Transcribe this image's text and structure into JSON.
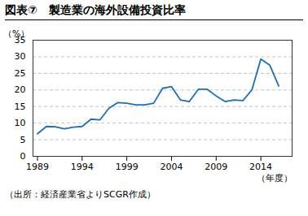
{
  "chart_data": {
    "type": "line",
    "title": "図表⑦　製造業の海外設備投資比率",
    "ylabel": "（%）",
    "xlabel": "（年度）",
    "source": "（出所：経済産業省よりSCGR作成）",
    "x": [
      1989,
      1990,
      1991,
      1992,
      1993,
      1994,
      1995,
      1996,
      1997,
      1998,
      1999,
      2000,
      2001,
      2002,
      2003,
      2004,
      2005,
      2006,
      2007,
      2008,
      2009,
      2010,
      2011,
      2012,
      2013,
      2014,
      2015,
      2016
    ],
    "values": [
      6.8,
      9.0,
      8.9,
      8.3,
      8.8,
      9.0,
      11.2,
      11.0,
      14.5,
      16.2,
      16.0,
      15.5,
      15.5,
      16.0,
      20.5,
      21.0,
      17.0,
      16.5,
      20.2,
      20.2,
      18.2,
      16.5,
      17.0,
      16.8,
      20.0,
      29.3,
      27.5,
      21.2
    ],
    "color": "#1f6eb5",
    "xlim": [
      1988.5,
      2017.5
    ],
    "xticks": [
      1989,
      1994,
      1999,
      2004,
      2009,
      2014
    ],
    "ylim": [
      0,
      35
    ],
    "yticks": [
      0,
      5,
      10,
      15,
      20,
      25,
      30,
      35
    ],
    "grid": true
  }
}
